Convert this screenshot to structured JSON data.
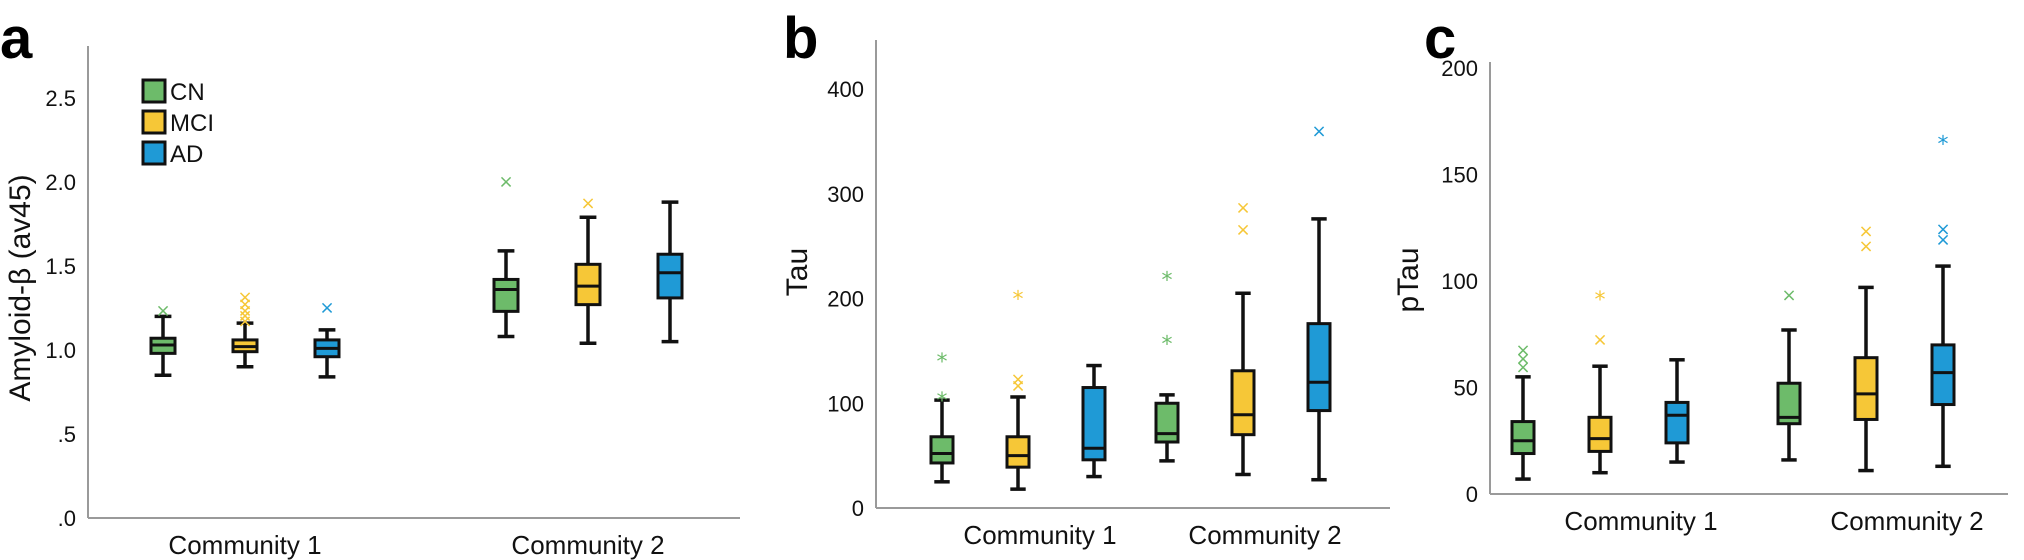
{
  "group_colors": {
    "CN": "#6dbb6a",
    "MCI": "#f6c737",
    "AD": "#1f9ad6"
  },
  "chart_data": [
    {
      "type": "box",
      "panel": "a",
      "title": "",
      "ylabel": "Amyloid-β (av45)",
      "xlabel": "",
      "ylim": [
        0,
        2.9
      ],
      "yticks": [
        0,
        0.5,
        1.0,
        1.5,
        2.0,
        2.5
      ],
      "ytick_labels": [
        ".0",
        ".5",
        "1.0",
        "1.5",
        "2.0",
        "2.5"
      ],
      "categories": [
        "Community 1",
        "Community 2"
      ],
      "legend": [
        "CN",
        "MCI",
        "AD"
      ],
      "legend_position": "top-left",
      "groups": [
        {
          "category": "Community 1",
          "series": "CN",
          "whisker_low": 0.85,
          "q1": 0.98,
          "median": 1.03,
          "q3": 1.07,
          "whisker_high": 1.2,
          "outliers": [
            {
              "v": 1.24,
              "m": "x"
            }
          ]
        },
        {
          "category": "Community 1",
          "series": "MCI",
          "whisker_low": 0.9,
          "q1": 0.99,
          "median": 1.02,
          "q3": 1.06,
          "whisker_high": 1.16,
          "outliers": [
            {
              "v": 1.18,
              "m": "x"
            },
            {
              "v": 1.21,
              "m": "x"
            },
            {
              "v": 1.24,
              "m": "x"
            },
            {
              "v": 1.28,
              "m": "x"
            },
            {
              "v": 1.32,
              "m": "x"
            }
          ]
        },
        {
          "category": "Community 1",
          "series": "AD",
          "whisker_low": 0.84,
          "q1": 0.96,
          "median": 1.01,
          "q3": 1.06,
          "whisker_high": 1.12,
          "outliers": [
            {
              "v": 1.26,
              "m": "x"
            }
          ]
        },
        {
          "category": "Community 2",
          "series": "CN",
          "whisker_low": 1.08,
          "q1": 1.23,
          "median": 1.36,
          "q3": 1.42,
          "whisker_high": 1.59,
          "outliers": [
            {
              "v": 2.01,
              "m": "x"
            }
          ]
        },
        {
          "category": "Community 2",
          "series": "MCI",
          "whisker_low": 1.04,
          "q1": 1.27,
          "median": 1.38,
          "q3": 1.51,
          "whisker_high": 1.79,
          "outliers": [
            {
              "v": 1.88,
              "m": "x"
            }
          ]
        },
        {
          "category": "Community 2",
          "series": "AD",
          "whisker_low": 1.05,
          "q1": 1.31,
          "median": 1.46,
          "q3": 1.57,
          "whisker_high": 1.88,
          "outliers": []
        }
      ]
    },
    {
      "type": "box",
      "panel": "b",
      "title": "",
      "ylabel": "Tau",
      "xlabel": "",
      "ylim": [
        0,
        440
      ],
      "yticks": [
        0,
        100,
        200,
        300,
        400
      ],
      "ytick_labels": [
        "0",
        "100",
        "200",
        "300",
        "400"
      ],
      "categories": [
        "Community 1",
        "Community 2"
      ],
      "legend": [],
      "groups": [
        {
          "category": "Community 1",
          "series": "CN",
          "whisker_low": 25,
          "q1": 43,
          "median": 52,
          "q3": 68,
          "whisker_high": 103,
          "outliers": [
            {
              "v": 106,
              "m": "*"
            },
            {
              "v": 143,
              "m": "*"
            }
          ]
        },
        {
          "category": "Community 1",
          "series": "MCI",
          "whisker_low": 18,
          "q1": 39,
          "median": 50,
          "q3": 68,
          "whisker_high": 106,
          "outliers": [
            {
              "v": 118,
              "m": "x"
            },
            {
              "v": 124,
              "m": "x"
            },
            {
              "v": 203,
              "m": "*"
            }
          ]
        },
        {
          "category": "Community 1",
          "series": "AD",
          "whisker_low": 30,
          "q1": 46,
          "median": 57,
          "q3": 115,
          "whisker_high": 136,
          "outliers": []
        },
        {
          "category": "Community 2",
          "series": "CN",
          "whisker_low": 45,
          "q1": 63,
          "median": 71,
          "q3": 100,
          "whisker_high": 108,
          "outliers": [
            {
              "v": 160,
              "m": "*"
            },
            {
              "v": 221,
              "m": "*"
            }
          ]
        },
        {
          "category": "Community 2",
          "series": "MCI",
          "whisker_low": 32,
          "q1": 70,
          "median": 89,
          "q3": 131,
          "whisker_high": 205,
          "outliers": [
            {
              "v": 267,
              "m": "x"
            },
            {
              "v": 288,
              "m": "x"
            }
          ]
        },
        {
          "category": "Community 2",
          "series": "AD",
          "whisker_low": 27,
          "q1": 93,
          "median": 120,
          "q3": 176,
          "whisker_high": 276,
          "outliers": [
            {
              "v": 361,
              "m": "x"
            }
          ]
        }
      ]
    },
    {
      "type": "box",
      "panel": "c",
      "title": "",
      "ylabel": "pTau",
      "xlabel": "",
      "ylim": [
        0,
        205
      ],
      "yticks": [
        0,
        50,
        100,
        150,
        200
      ],
      "ytick_labels": [
        "0",
        "50",
        "100",
        "150",
        "200"
      ],
      "categories": [
        "Community 1",
        "Community 2"
      ],
      "legend": [],
      "groups": [
        {
          "category": "Community 1",
          "series": "CN",
          "whisker_low": 7,
          "q1": 19,
          "median": 25,
          "q3": 34,
          "whisker_high": 55,
          "outliers": [
            {
              "v": 60,
              "m": "x"
            },
            {
              "v": 64,
              "m": "x"
            },
            {
              "v": 68,
              "m": "x"
            }
          ]
        },
        {
          "category": "Community 1",
          "series": "MCI",
          "whisker_low": 10,
          "q1": 20,
          "median": 26,
          "q3": 36,
          "whisker_high": 60,
          "outliers": [
            {
              "v": 73,
              "m": "x"
            },
            {
              "v": 93,
              "m": "*"
            }
          ]
        },
        {
          "category": "Community 1",
          "series": "AD",
          "whisker_low": 15,
          "q1": 24,
          "median": 37,
          "q3": 43,
          "whisker_high": 63,
          "outliers": []
        },
        {
          "category": "Community 2",
          "series": "CN",
          "whisker_low": 16,
          "q1": 33,
          "median": 36,
          "q3": 52,
          "whisker_high": 77,
          "outliers": [
            {
              "v": 94,
              "m": "x"
            }
          ]
        },
        {
          "category": "Community 2",
          "series": "MCI",
          "whisker_low": 11,
          "q1": 35,
          "median": 47,
          "q3": 64,
          "whisker_high": 97,
          "outliers": [
            {
              "v": 117,
              "m": "x"
            },
            {
              "v": 124,
              "m": "x"
            }
          ]
        },
        {
          "category": "Community 2",
          "series": "AD",
          "whisker_low": 13,
          "q1": 42,
          "median": 57,
          "q3": 70,
          "whisker_high": 107,
          "outliers": [
            {
              "v": 120,
              "m": "x"
            },
            {
              "v": 125,
              "m": "x"
            },
            {
              "v": 166,
              "m": "*"
            }
          ]
        }
      ]
    }
  ]
}
